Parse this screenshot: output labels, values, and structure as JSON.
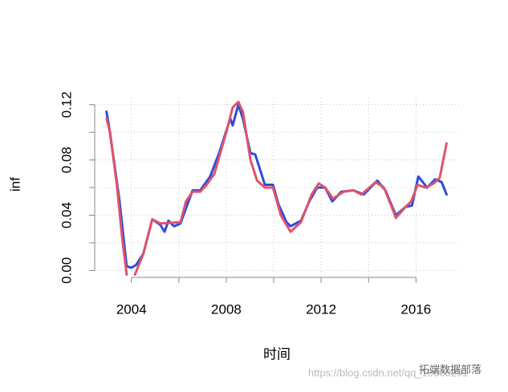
{
  "chart_data": {
    "type": "line",
    "xlabel": "时间",
    "ylabel": "inf",
    "xlim": [
      2002.35,
      2017.85
    ],
    "ylim": [
      -0.005,
      0.125
    ],
    "xticks": [
      2004,
      2008,
      2012,
      2016
    ],
    "xminor": [
      2006,
      2010,
      2014
    ],
    "yticks": [
      {
        "value": 0,
        "label": "0.00"
      },
      {
        "value": 0.04,
        "label": "0.04"
      },
      {
        "value": 0.08,
        "label": "0.08"
      },
      {
        "value": 0.12,
        "label": "0.12"
      }
    ],
    "yminor": [
      0.02,
      0.06,
      0.1
    ],
    "grid": true,
    "series": [
      {
        "color": "#2e4bdb",
        "x": [
          2002.95,
          2003.05,
          2003.3,
          2003.5,
          2003.8,
          2004.0,
          2004.2,
          2004.5,
          2004.88,
          2005.22,
          2005.4,
          2005.56,
          2005.8,
          2006.07,
          2006.3,
          2006.58,
          2006.9,
          2007.32,
          2007.7,
          2008.17,
          2008.27,
          2008.51,
          2008.7,
          2009.02,
          2009.22,
          2009.63,
          2009.97,
          2010.2,
          2010.54,
          2010.71,
          2011.15,
          2011.5,
          2011.83,
          2012.17,
          2012.47,
          2012.85,
          2013.36,
          2013.8,
          2014.37,
          2014.71,
          2015.15,
          2015.56,
          2015.83,
          2016.1,
          2016.47,
          2016.81,
          2017.08,
          2017.29
        ],
        "values": [
          0.115,
          0.105,
          0.075,
          0.05,
          0.003,
          0.002,
          0.004,
          0.012,
          0.037,
          0.033,
          0.028,
          0.036,
          0.032,
          0.034,
          0.045,
          0.058,
          0.058,
          0.068,
          0.085,
          0.11,
          0.105,
          0.12,
          0.11,
          0.085,
          0.084,
          0.062,
          0.062,
          0.048,
          0.035,
          0.032,
          0.036,
          0.05,
          0.06,
          0.06,
          0.05,
          0.057,
          0.058,
          0.055,
          0.065,
          0.058,
          0.04,
          0.046,
          0.047,
          0.068,
          0.06,
          0.066,
          0.064,
          0.055
        ]
      },
      {
        "color": "#df536b",
        "x": [
          2002.95,
          2003.1,
          2003.4,
          2003.6,
          2003.8,
          2004.0,
          2004.15,
          2004.5,
          2004.88,
          2005.22,
          2006.07,
          2006.3,
          2006.58,
          2006.9,
          2007.17,
          2007.5,
          2008.0,
          2008.27,
          2008.51,
          2008.7,
          2009.02,
          2009.3,
          2009.63,
          2009.97,
          2010.3,
          2010.71,
          2011.15,
          2011.6,
          2011.9,
          2012.17,
          2012.5,
          2012.95,
          2013.36,
          2013.7,
          2014.3,
          2014.65,
          2015.0,
          2015.15,
          2015.56,
          2015.8,
          2016.07,
          2016.4,
          2016.75,
          2017.0,
          2017.29
        ],
        "values": [
          0.11,
          0.1,
          0.06,
          0.025,
          -0.003,
          null,
          -0.003,
          0.012,
          0.037,
          0.034,
          0.035,
          0.05,
          0.057,
          0.057,
          0.062,
          0.07,
          0.1,
          0.118,
          0.122,
          0.115,
          0.08,
          0.065,
          0.06,
          0.06,
          0.04,
          0.028,
          0.035,
          0.055,
          0.063,
          0.06,
          0.052,
          0.057,
          0.058,
          0.055,
          0.064,
          0.06,
          0.045,
          0.038,
          0.046,
          0.05,
          0.062,
          0.06,
          0.063,
          0.067,
          0.092
        ]
      }
    ]
  },
  "watermark": {
    "brand": "拓端数据部落",
    "url": "https://blog.csdn.net/qq_19600291"
  }
}
